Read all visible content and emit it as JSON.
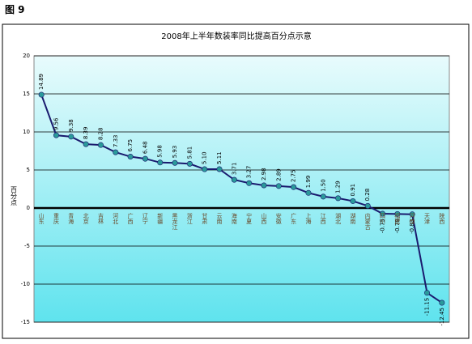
{
  "heading": "图 9",
  "chart_data": {
    "type": "line",
    "title": "2008年上半年数装率同比提高百分点示意",
    "y_label": "百分点",
    "categories": [
      "山东",
      "重庆",
      "青海",
      "北京",
      "吉林",
      "河北",
      "广西",
      "辽宁",
      "新疆",
      "黑龙江",
      "浙江",
      "甘肃",
      "云南",
      "海南",
      "宁夏",
      "山西",
      "安徽",
      "广东",
      "上海",
      "江西",
      "湖北",
      "湖南",
      "内蒙古",
      "四川",
      "福建",
      "河南",
      "天津",
      "陕西"
    ],
    "values": [
      14.89,
      9.56,
      9.38,
      8.39,
      8.28,
      7.33,
      6.75,
      6.48,
      5.98,
      5.93,
      5.81,
      5.1,
      5.11,
      3.71,
      3.27,
      2.98,
      2.89,
      2.75,
      1.99,
      1.5,
      1.29,
      0.91,
      0.28,
      -0.75,
      -0.78,
      -0.83,
      -11.15,
      -12.45
    ],
    "value_labels": [
      "14.89",
      "9.56",
      "9.38",
      "8.39",
      "8.28",
      "7.33",
      "6.75",
      "6.48",
      "5.98",
      "5.93",
      "5.81",
      "5.10",
      "5.11",
      "3.71",
      "3.27",
      "2.98",
      "2.89",
      "2.75",
      "1.99",
      "1.50",
      "1.29",
      "0.91",
      "0.28",
      "-0.75",
      "-0.78",
      "-0.83",
      "-11.15",
      "-12.45"
    ],
    "color": "#1a1a6e",
    "marker_color": "#2a9a9a",
    "ylim": [
      -15,
      20
    ],
    "yticks": [
      -15,
      -10,
      -5,
      0,
      5,
      10,
      15,
      20
    ],
    "grid": true
  }
}
